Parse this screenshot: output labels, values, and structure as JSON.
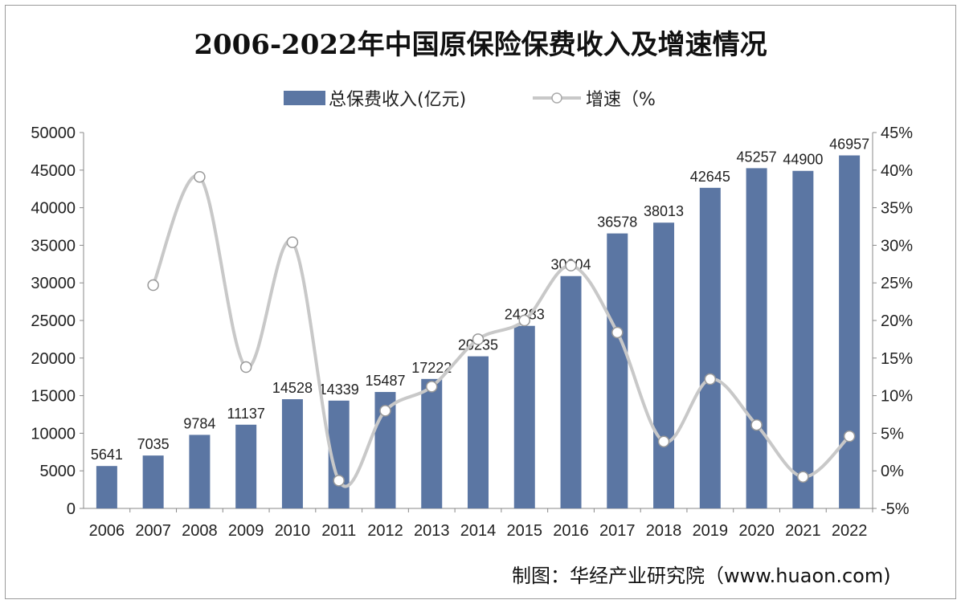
{
  "chart_data": {
    "type": "bar+line",
    "title": "2006-2022年中国原保险保费收入及增速情况",
    "categories": [
      "2006",
      "2007",
      "2008",
      "2009",
      "2010",
      "2011",
      "2012",
      "2013",
      "2014",
      "2015",
      "2016",
      "2017",
      "2018",
      "2019",
      "2020",
      "2021",
      "2022"
    ],
    "series": [
      {
        "name": "总保费收入(亿元)",
        "type": "bar",
        "axis": "left",
        "color": "#5b76a3",
        "values": [
          5641,
          7035,
          9784,
          11137,
          14528,
          14339,
          15487,
          17222,
          20235,
          24283,
          30904,
          36578,
          38013,
          42645,
          45257,
          44900,
          46957
        ]
      },
      {
        "name": "增速（%",
        "type": "line",
        "axis": "right",
        "color": "#c8c8c8",
        "values": [
          null,
          24.7,
          39.1,
          13.8,
          30.4,
          -1.3,
          8.0,
          11.2,
          17.5,
          20.0,
          27.3,
          18.4,
          3.9,
          12.2,
          6.1,
          -0.8,
          4.6
        ]
      }
    ],
    "y_left": {
      "range": [
        0,
        50000
      ],
      "ticks": [
        "0",
        "5000",
        "10000",
        "15000",
        "20000",
        "25000",
        "30000",
        "35000",
        "40000",
        "45000",
        "50000"
      ]
    },
    "y_right": {
      "range": [
        -5,
        45
      ],
      "ticks": [
        "-5%",
        "0%",
        "5%",
        "10%",
        "15%",
        "20%",
        "25%",
        "30%",
        "35%",
        "40%",
        "45%"
      ]
    },
    "grid": false,
    "legend": "top"
  },
  "source": "制图：华经产业研究院（www.huaon.com)",
  "watermark": "华经产业研究院 www.huaon.com"
}
